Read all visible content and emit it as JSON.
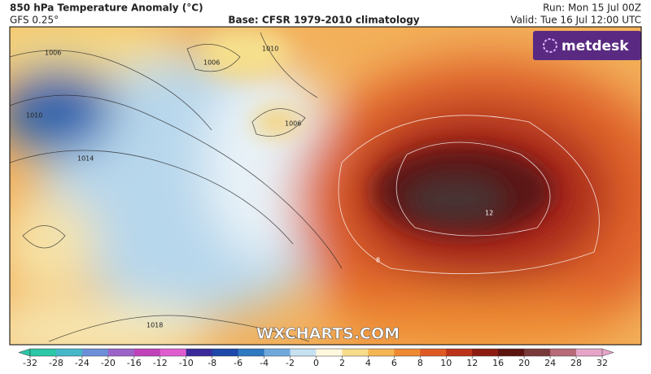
{
  "header": {
    "title": "850 hPa Temperature Anomaly (°C)",
    "model": "GFS 0.25°",
    "base": "Base: CFSR 1979-2010 climatology",
    "run": "Run: Mon 15 Jul 00Z",
    "valid": "Valid: Tue 16 Jul 12:00 UTC"
  },
  "logo": "metdesk",
  "watermark": "WXCHARTS.COM",
  "isobar_labels": [
    1006,
    1010,
    1014,
    1018,
    1006,
    1010,
    1006
  ],
  "anomaly_labels": [
    12,
    8
  ],
  "colorbar": {
    "ticks": [
      -32,
      -28,
      -24,
      -20,
      -16,
      -12,
      -10,
      -8,
      -6,
      -4,
      -2,
      0,
      2,
      4,
      6,
      8,
      10,
      12,
      16,
      20,
      24,
      28,
      32
    ],
    "colors": [
      "#2cc7a7",
      "#44b8c9",
      "#6c8fd8",
      "#9c64c9",
      "#c042b8",
      "#e05dd0",
      "#3a2a9a",
      "#1d47a8",
      "#2f78c2",
      "#6fa9dc",
      "#c7e1f1",
      "#fff8df",
      "#f7dc8a",
      "#f4b553",
      "#ee8a32",
      "#df5a22",
      "#bb3318",
      "#8c1c12",
      "#5c1410",
      "#7a3a3a",
      "#b86a78",
      "#e6a5c8"
    ]
  }
}
